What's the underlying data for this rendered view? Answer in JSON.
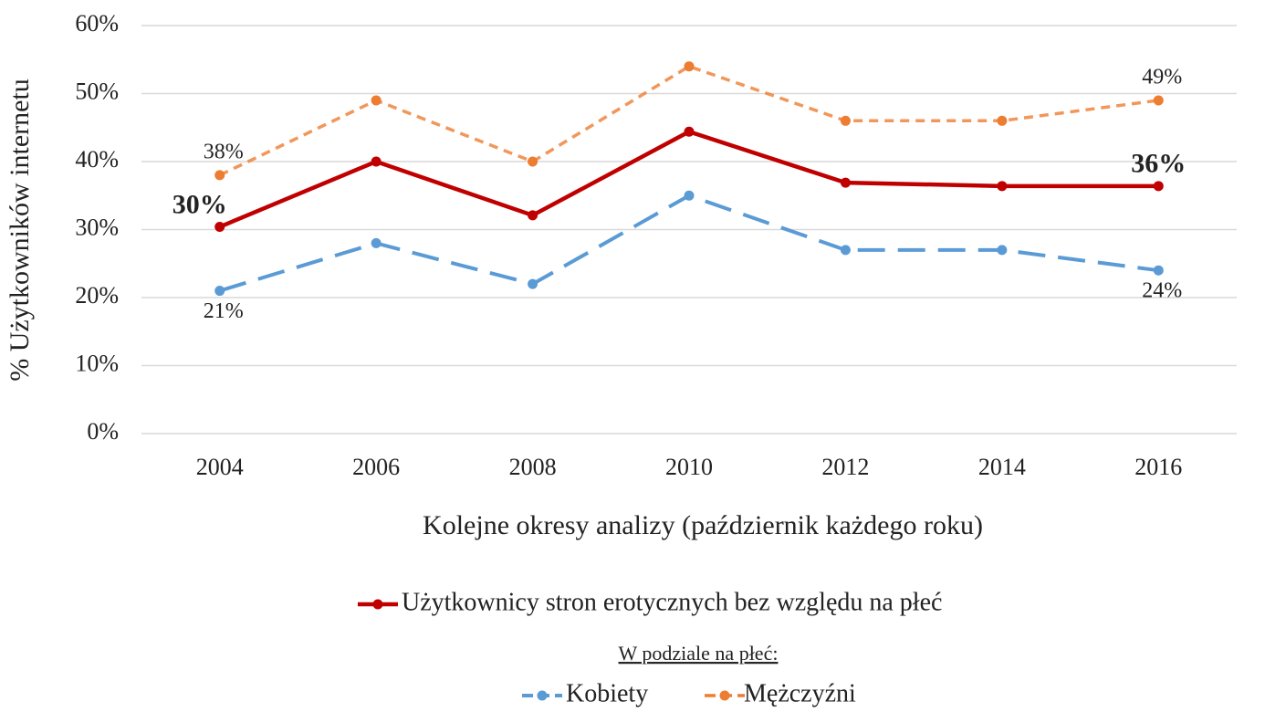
{
  "chart_data": {
    "type": "line",
    "xlabel": "Kolejne okresy analizy (październik każdego roku)",
    "ylabel": "% Użytkowników internetu",
    "categories": [
      "2004",
      "2006",
      "2008",
      "2010",
      "2012",
      "2014",
      "2016"
    ],
    "series": [
      {
        "name": "Użytkownicy stron erotycznych bez względu na płeć",
        "color": "#c00000",
        "dash": "solid",
        "values": [
          30.4,
          40.0,
          32.1,
          44.4,
          36.9,
          36.4,
          36.4
        ],
        "value_labels": [
          "30%",
          null,
          null,
          null,
          null,
          null,
          "36%"
        ]
      },
      {
        "name": "Kobiety",
        "color": "#5b9bd5",
        "dash": "long",
        "values": [
          21,
          28,
          22,
          35,
          27,
          27,
          24
        ],
        "value_labels": [
          "21%",
          null,
          null,
          null,
          null,
          null,
          "24%"
        ]
      },
      {
        "name": "Mężczyźni",
        "color": "#ed7d31",
        "dash": "short",
        "values": [
          38,
          49,
          40,
          54,
          46,
          46,
          49
        ],
        "value_labels": [
          "38%",
          null,
          null,
          null,
          null,
          null,
          "49%"
        ]
      }
    ],
    "legend_subtitle": "W podziale na płeć:",
    "ylim": [
      0,
      60
    ],
    "yticks": [
      {
        "value": 0,
        "label": "0%"
      },
      {
        "value": 10,
        "label": "10%"
      },
      {
        "value": 20,
        "label": "20%"
      },
      {
        "value": 30,
        "label": "30%"
      },
      {
        "value": 40,
        "label": "40%"
      },
      {
        "value": 50,
        "label": "50%"
      },
      {
        "value": 60,
        "label": "60%"
      }
    ],
    "grid": true
  }
}
